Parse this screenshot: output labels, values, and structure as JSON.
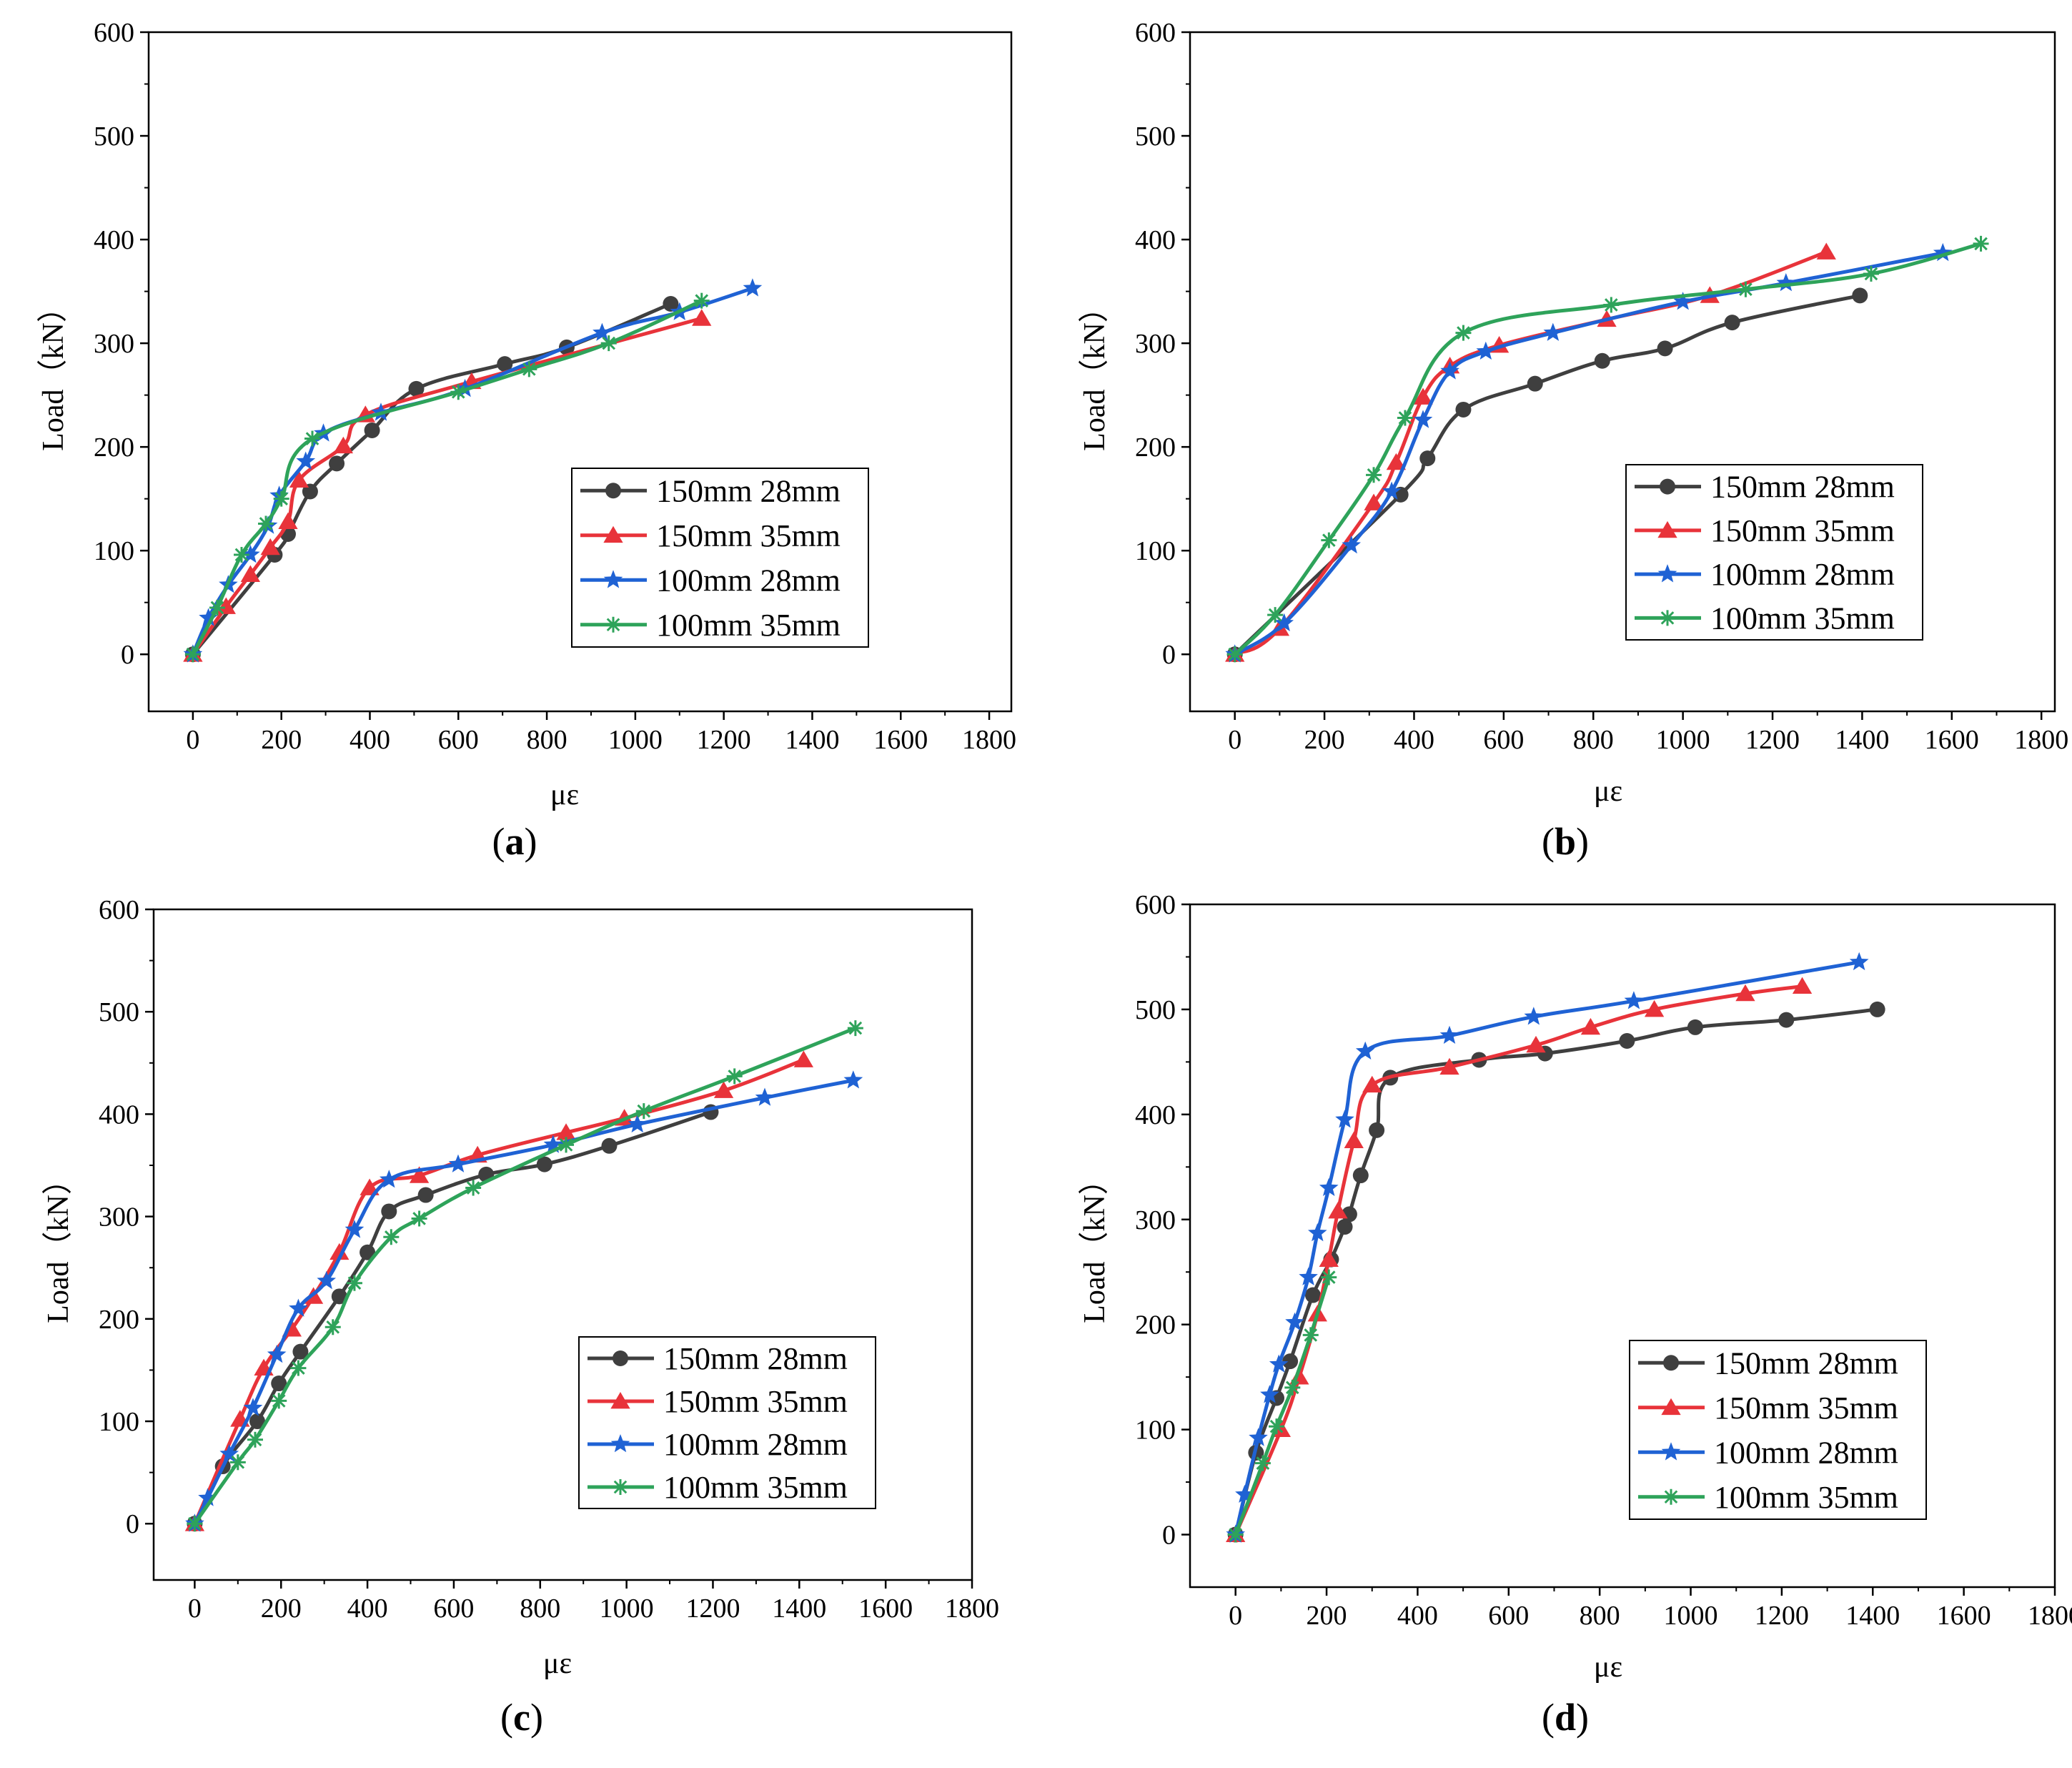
{
  "colors": {
    "s150_28": "#3f3f3f",
    "s150_35": "#e8333a",
    "s100_28": "#1f62d4",
    "s100_35": "#2ea35a"
  },
  "chart_data": [
    {
      "id": "a",
      "type": "line",
      "caption_letter": "a",
      "xlabel": "με",
      "ylabel": "Load（kN）",
      "xlim": [
        -100,
        1850
      ],
      "ylim": [
        -55,
        600
      ],
      "xticks": [
        0,
        200,
        400,
        600,
        800,
        1000,
        1200,
        1400,
        1600,
        1800
      ],
      "yticks": [
        0,
        100,
        200,
        300,
        400,
        500,
        600
      ],
      "legend_position": "lower-right",
      "series": [
        {
          "name": "150mm 28mm",
          "marker": "circle",
          "color_key": "s150_28",
          "x": [
            0,
            185,
            215,
            265,
            325,
            405,
            505,
            705,
            845,
            1080
          ],
          "y": [
            0,
            96,
            116,
            157,
            184,
            216,
            256,
            280,
            296,
            338
          ]
        },
        {
          "name": "150mm 35mm",
          "marker": "triangle",
          "color_key": "s150_35",
          "x": [
            0,
            75,
            130,
            175,
            215,
            240,
            340,
            390,
            630,
            1150
          ],
          "y": [
            0,
            46,
            77,
            103,
            128,
            168,
            201,
            231,
            263,
            324
          ]
        },
        {
          "name": "100mm 28mm",
          "marker": "star",
          "color_key": "s100_28",
          "x": [
            0,
            35,
            80,
            130,
            170,
            195,
            255,
            295,
            425,
            615,
            925,
            1100,
            1265
          ],
          "y": [
            0,
            35,
            67,
            96,
            124,
            153,
            186,
            213,
            233,
            256,
            310,
            330,
            353
          ]
        },
        {
          "name": "100mm 35mm",
          "marker": "asterisk",
          "color_key": "s100_35",
          "x": [
            0,
            55,
            110,
            165,
            200,
            270,
            600,
            760,
            940,
            1150
          ],
          "y": [
            0,
            45,
            96,
            126,
            150,
            208,
            253,
            275,
            300,
            341
          ]
        }
      ]
    },
    {
      "id": "b",
      "type": "line",
      "caption_letter": "b",
      "xlabel": "με",
      "ylabel": "Load（kN）",
      "xlim": [
        -100,
        1830
      ],
      "ylim": [
        -55,
        600
      ],
      "xticks": [
        0,
        200,
        400,
        600,
        800,
        1000,
        1200,
        1400,
        1600,
        1800
      ],
      "yticks": [
        0,
        100,
        200,
        300,
        400,
        500,
        600
      ],
      "legend_position": "lower-right",
      "series": [
        {
          "name": "150mm 28mm",
          "marker": "circle",
          "color_key": "s150_28",
          "x": [
            0,
            370,
            430,
            510,
            670,
            820,
            960,
            1110,
            1395
          ],
          "y": [
            0,
            154,
            189,
            236,
            261,
            283,
            295,
            320,
            346
          ]
        },
        {
          "name": "150mm 35mm",
          "marker": "triangle",
          "color_key": "s150_35",
          "x": [
            0,
            100,
            310,
            360,
            420,
            480,
            590,
            830,
            1060,
            1320
          ],
          "y": [
            0,
            25,
            146,
            185,
            248,
            278,
            298,
            323,
            346,
            388
          ]
        },
        {
          "name": "100mm 28mm",
          "marker": "star",
          "color_key": "s100_28",
          "x": [
            0,
            110,
            260,
            350,
            420,
            480,
            560,
            710,
            1000,
            1230,
            1580
          ],
          "y": [
            0,
            30,
            105,
            157,
            226,
            273,
            292,
            310,
            340,
            358,
            387
          ]
        },
        {
          "name": "100mm 35mm",
          "marker": "asterisk",
          "color_key": "s100_35",
          "x": [
            0,
            90,
            210,
            310,
            380,
            510,
            840,
            1140,
            1420,
            1665
          ],
          "y": [
            0,
            38,
            110,
            173,
            228,
            310,
            337,
            352,
            367,
            396
          ]
        }
      ]
    },
    {
      "id": "c",
      "type": "line",
      "caption_letter": "c",
      "xlabel": "με",
      "ylabel": "Load（kN）",
      "xlim": [
        -95,
        1800
      ],
      "ylim": [
        -55,
        600
      ],
      "xticks": [
        0,
        200,
        400,
        600,
        800,
        1000,
        1200,
        1400,
        1600,
        1800
      ],
      "yticks": [
        0,
        100,
        200,
        300,
        400,
        500,
        600
      ],
      "legend_position": "lower-right",
      "series": [
        {
          "name": "150mm 28mm",
          "marker": "circle",
          "color_key": "s150_28",
          "x": [
            0,
            65,
            145,
            195,
            245,
            335,
            400,
            450,
            535,
            675,
            810,
            960,
            1195
          ],
          "y": [
            0,
            56,
            100,
            137,
            168,
            222,
            265,
            305,
            321,
            341,
            351,
            369,
            402
          ]
        },
        {
          "name": "150mm 35mm",
          "marker": "triangle",
          "color_key": "s150_35",
          "x": [
            0,
            105,
            160,
            225,
            275,
            335,
            405,
            520,
            655,
            860,
            995,
            1225,
            1410
          ],
          "y": [
            0,
            102,
            152,
            190,
            222,
            265,
            328,
            340,
            360,
            382,
            396,
            423,
            453
          ]
        },
        {
          "name": "100mm 28mm",
          "marker": "star",
          "color_key": "s100_28",
          "x": [
            0,
            30,
            80,
            135,
            190,
            240,
            305,
            370,
            450,
            610,
            830,
            1025,
            1320,
            1525
          ],
          "y": [
            0,
            25,
            68,
            113,
            165,
            210,
            237,
            287,
            336,
            351,
            370,
            390,
            416,
            433
          ]
        },
        {
          "name": "100mm 35mm",
          "marker": "asterisk",
          "color_key": "s100_35",
          "x": [
            0,
            100,
            140,
            195,
            240,
            320,
            370,
            455,
            520,
            645,
            860,
            1040,
            1250,
            1530
          ],
          "y": [
            0,
            60,
            82,
            120,
            152,
            192,
            235,
            280,
            298,
            328,
            370,
            403,
            437,
            484
          ]
        }
      ]
    },
    {
      "id": "d",
      "type": "line",
      "caption_letter": "d",
      "xlabel": "με",
      "ylabel": "Load（kN）",
      "xlim": [
        -100,
        1800
      ],
      "ylim": [
        -50,
        600
      ],
      "xticks": [
        0,
        200,
        400,
        600,
        800,
        1000,
        1200,
        1400,
        1600,
        1800
      ],
      "yticks": [
        0,
        100,
        200,
        300,
        400,
        500,
        600
      ],
      "legend_position": "lower-right",
      "series": [
        {
          "name": "150mm 28mm",
          "marker": "circle",
          "color_key": "s150_28",
          "x": [
            0,
            45,
            90,
            120,
            170,
            210,
            240,
            250,
            275,
            310,
            340,
            535,
            680,
            860,
            1010,
            1210,
            1410
          ],
          "y": [
            0,
            78,
            130,
            165,
            228,
            262,
            293,
            305,
            342,
            385,
            435,
            452,
            458,
            470,
            483,
            490,
            500
          ]
        },
        {
          "name": "150mm 35mm",
          "marker": "triangle",
          "color_key": "s150_35",
          "x": [
            0,
            100,
            140,
            180,
            205,
            225,
            260,
            300,
            470,
            660,
            780,
            920,
            1120,
            1245
          ],
          "y": [
            0,
            100,
            150,
            210,
            262,
            308,
            375,
            428,
            445,
            466,
            483,
            500,
            515,
            522
          ]
        },
        {
          "name": "100mm 28mm",
          "marker": "star",
          "color_key": "s100_28",
          "x": [
            0,
            20,
            50,
            75,
            95,
            130,
            160,
            180,
            205,
            240,
            285,
            470,
            655,
            875,
            1370
          ],
          "y": [
            0,
            38,
            92,
            133,
            162,
            202,
            245,
            287,
            330,
            395,
            460,
            475,
            493,
            508,
            545
          ]
        },
        {
          "name": "100mm 35mm",
          "marker": "asterisk",
          "color_key": "s100_35",
          "x": [
            0,
            60,
            90,
            125,
            165,
            205
          ],
          "y": [
            0,
            68,
            103,
            140,
            190,
            245
          ]
        }
      ]
    }
  ]
}
